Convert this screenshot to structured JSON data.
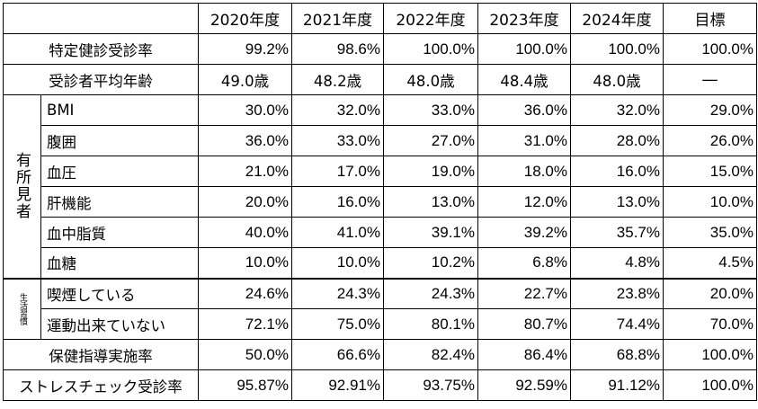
{
  "header": {
    "years": [
      "2020年度",
      "2021年度",
      "2022年度",
      "2023年度",
      "2024年度",
      "目標"
    ]
  },
  "rows_top": [
    {
      "label": "特定健診受診率",
      "values": [
        "99.2%",
        "98.6%",
        "100.0%",
        "100.0%",
        "100.0%",
        "100.0%"
      ]
    },
    {
      "label": "受診者平均年齢",
      "values": [
        "49.0歳",
        "48.2歳",
        "48.0歳",
        "48.4歳",
        "48.0歳",
        "―"
      ]
    }
  ],
  "group_findings": {
    "label": "有所見者",
    "rows": [
      {
        "label": "BMI",
        "values": [
          "30.0%",
          "32.0%",
          "33.0%",
          "36.0%",
          "32.0%",
          "29.0%"
        ]
      },
      {
        "label": "腹囲",
        "values": [
          "36.0%",
          "33.0%",
          "27.0%",
          "31.0%",
          "28.0%",
          "26.0%"
        ]
      },
      {
        "label": "血圧",
        "values": [
          "21.0%",
          "17.0%",
          "19.0%",
          "18.0%",
          "16.0%",
          "15.0%"
        ]
      },
      {
        "label": "肝機能",
        "values": [
          "20.0%",
          "16.0%",
          "13.0%",
          "12.0%",
          "13.0%",
          "10.0%"
        ]
      },
      {
        "label": "血中脂質",
        "values": [
          "40.0%",
          "41.0%",
          "39.1%",
          "39.2%",
          "35.7%",
          "35.0%"
        ]
      },
      {
        "label": "血糖",
        "values": [
          "10.0%",
          "10.0%",
          "10.2%",
          "6.8%",
          "4.8%",
          "4.5%"
        ]
      }
    ]
  },
  "group_habits": {
    "label": "生活習慣",
    "rows": [
      {
        "label": "喫煙している",
        "values": [
          "24.6%",
          "24.3%",
          "24.3%",
          "22.7%",
          "23.8%",
          "20.0%"
        ]
      },
      {
        "label": "運動出来ていない",
        "values": [
          "72.1%",
          "75.0%",
          "80.1%",
          "80.7%",
          "74.4%",
          "70.0%"
        ]
      }
    ]
  },
  "rows_bottom": [
    {
      "label": "保健指導実施率",
      "values": [
        "50.0%",
        "66.6%",
        "82.4%",
        "86.4%",
        "68.8%",
        "100.0%"
      ]
    },
    {
      "label": "ストレスチェック受診率",
      "values": [
        "95.87%",
        "92.91%",
        "93.75%",
        "92.59%",
        "91.12%",
        "100.0%"
      ]
    }
  ]
}
